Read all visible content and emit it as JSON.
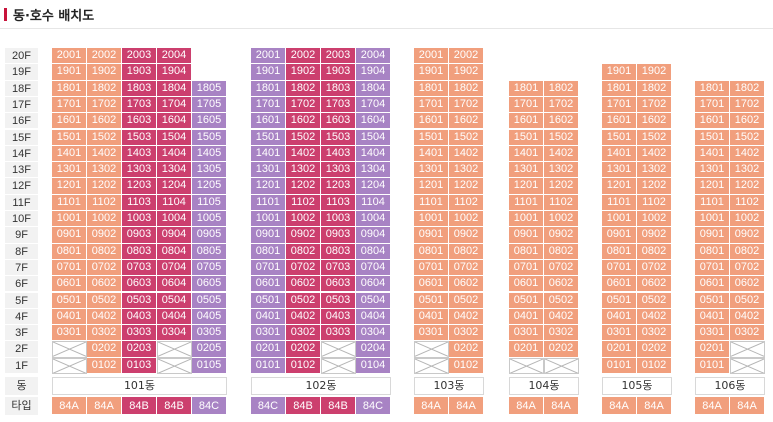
{
  "header": {
    "title": "동·호수 배치도"
  },
  "row_labels": {
    "dong": "동",
    "type": "타입"
  },
  "floors": [
    "20F",
    "19F",
    "18F",
    "17F",
    "16F",
    "15F",
    "14F",
    "13F",
    "12F",
    "11F",
    "10F",
    "9F",
    "8F",
    "7F",
    "6F",
    "5F",
    "4F",
    "3F",
    "2F",
    "1F"
  ],
  "colors": {
    "84A": "#f19f7d",
    "84B": "#cc3f6e",
    "84C": "#a883c4",
    "none": "#ffffff"
  },
  "buildings": [
    {
      "name": "101동",
      "types": [
        "84A",
        "84A",
        "84B",
        "84B",
        "84C"
      ],
      "top_floors": [
        20,
        20,
        20,
        20,
        18
      ],
      "empty": [
        "0201",
        "0101",
        "0204",
        "0104"
      ]
    },
    {
      "name": "102동",
      "types": [
        "84C",
        "84B",
        "84B",
        "84C"
      ],
      "top_floors": [
        20,
        20,
        20,
        20
      ],
      "empty": [
        "0203",
        "0103"
      ]
    },
    {
      "name": "103동",
      "types": [
        "84A",
        "84A"
      ],
      "top_floors": [
        20,
        20
      ],
      "empty": [
        "0201",
        "0101"
      ]
    },
    {
      "name": "104동",
      "types": [
        "84A",
        "84A"
      ],
      "top_floors": [
        18,
        18
      ],
      "empty": [
        "0101",
        "0102"
      ]
    },
    {
      "name": "105동",
      "types": [
        "84A",
        "84A"
      ],
      "top_floors": [
        19,
        19
      ],
      "empty": []
    },
    {
      "name": "106동",
      "types": [
        "84A",
        "84A"
      ],
      "top_floors": [
        18,
        18
      ],
      "empty": [
        "0202",
        "0102"
      ]
    }
  ]
}
